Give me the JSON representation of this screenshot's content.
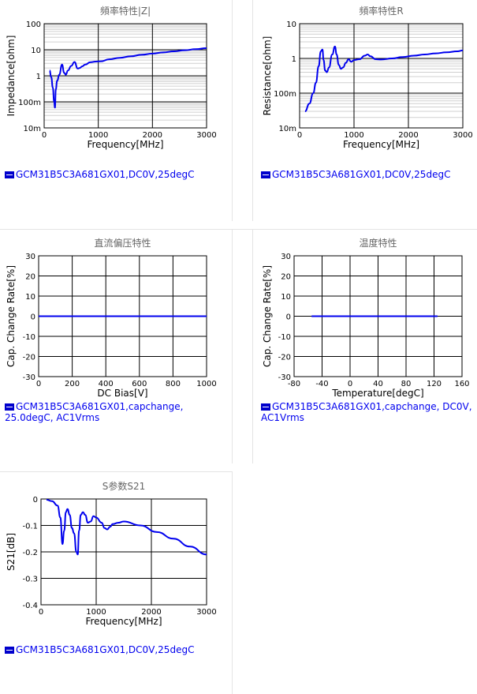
{
  "chart_data": [
    {
      "id": "z",
      "type": "line",
      "title": "頻率特性|Z|",
      "xlabel": "Frequency[MHz]",
      "ylabel": "Impedance[ohm]",
      "xlim": [
        0,
        3000
      ],
      "ylim": [
        0.01,
        100
      ],
      "yscale": "log",
      "grid": true,
      "x_ticks": [
        "0",
        "1000",
        "2000",
        "3000"
      ],
      "y_ticks": [
        "10m",
        "100m",
        "1",
        "10",
        "100"
      ],
      "legend": "GCM31B5C3A681GX01,DC0V,25degC",
      "series": [
        {
          "color": "#0000ee",
          "x": [
            100,
            130,
            160,
            185,
            200,
            215,
            240,
            280,
            330,
            370,
            400,
            440,
            500,
            560,
            620,
            660,
            700,
            760,
            850,
            950,
            1050,
            1200,
            1400,
            1600,
            1800,
            2000,
            2200,
            2400,
            2600,
            2800,
            3000
          ],
          "y": [
            1.6,
            0.9,
            0.35,
            0.1,
            0.06,
            0.3,
            0.65,
            1.1,
            2.7,
            1.3,
            1.1,
            1.6,
            2.4,
            3.4,
            1.9,
            2.0,
            2.3,
            2.7,
            3.3,
            3.5,
            3.6,
            4.3,
            4.9,
            5.6,
            6.4,
            7.1,
            7.9,
            8.7,
            9.6,
            10.5,
            11.5
          ]
        }
      ]
    },
    {
      "id": "r",
      "type": "line",
      "title": "頻率特性R",
      "xlabel": "Frequency[MHz]",
      "ylabel": "Resistance[ohm]",
      "xlim": [
        0,
        3000
      ],
      "ylim": [
        0.01,
        10
      ],
      "yscale": "log",
      "grid": true,
      "x_ticks": [
        "0",
        "1000",
        "2000",
        "3000"
      ],
      "y_ticks": [
        "10m",
        "100m",
        "1",
        "10"
      ],
      "legend": "GCM31B5C3A681GX01,DC0V,25degC",
      "series": [
        {
          "color": "#0000ee",
          "x": [
            100,
            180,
            250,
            300,
            350,
            390,
            420,
            440,
            470,
            500,
            540,
            600,
            650,
            680,
            720,
            760,
            800,
            850,
            900,
            950,
            1000,
            1100,
            1200,
            1250,
            1300,
            1400,
            1500,
            1700,
            1900,
            2100,
            2300,
            2500,
            2700,
            2900,
            3000
          ],
          "y": [
            0.03,
            0.05,
            0.1,
            0.2,
            0.6,
            1.6,
            1.8,
            0.9,
            0.45,
            0.4,
            0.55,
            1.3,
            2.2,
            1.3,
            0.65,
            0.5,
            0.55,
            0.75,
            0.95,
            0.8,
            0.9,
            0.95,
            1.2,
            1.3,
            1.15,
            0.95,
            0.93,
            1.0,
            1.1,
            1.2,
            1.3,
            1.4,
            1.5,
            1.6,
            1.7
          ]
        }
      ]
    },
    {
      "id": "dc",
      "type": "line",
      "title": "直流偏压特性",
      "xlabel": "DC Bias[V]",
      "ylabel": "Cap. Change Rate[%]",
      "xlim": [
        0,
        1000
      ],
      "ylim": [
        -30,
        30
      ],
      "grid": true,
      "x_ticks": [
        "0",
        "200",
        "400",
        "600",
        "800",
        "1000"
      ],
      "y_ticks": [
        "-30",
        "-20",
        "-10",
        "0",
        "10",
        "20",
        "30"
      ],
      "legend": "GCM31B5C3A681GX01,capchange, 25.0degC, AC1Vrms",
      "series": [
        {
          "color": "#0000ee",
          "x": [
            0,
            250,
            500,
            750,
            1000
          ],
          "y": [
            0,
            0,
            0,
            0,
            0
          ]
        }
      ]
    },
    {
      "id": "temp",
      "type": "line",
      "title": "温度特性",
      "xlabel": "Temperature[degC]",
      "ylabel": "Cap. Change Rate[%]",
      "xlim": [
        -80,
        160
      ],
      "ylim": [
        -30,
        30
      ],
      "grid": true,
      "x_ticks": [
        "-80",
        "-40",
        "0",
        "40",
        "80",
        "120",
        "160"
      ],
      "y_ticks": [
        "-30",
        "-20",
        "-10",
        "0",
        "10",
        "20",
        "30"
      ],
      "legend": "GCM31B5C3A681GX01,capchange, DC0V, AC1Vrms",
      "series": [
        {
          "color": "#0000ee",
          "x": [
            -55,
            0,
            60,
            125
          ],
          "y": [
            0,
            0,
            0,
            0
          ]
        }
      ]
    },
    {
      "id": "s21",
      "type": "line",
      "title": "S参数S21",
      "xlabel": "Frequency[MHz]",
      "ylabel": "S21[dB]",
      "xlim": [
        0,
        3000
      ],
      "ylim": [
        -0.4,
        0
      ],
      "grid": true,
      "x_ticks": [
        "0",
        "1000",
        "2000",
        "3000"
      ],
      "y_ticks": [
        "-0.4",
        "-0.3",
        "-0.2",
        "-0.1",
        "0"
      ],
      "legend": "GCM31B5C3A681GX01,DC0V,25degC",
      "series": [
        {
          "color": "#0000ee",
          "x": [
            100,
            200,
            300,
            350,
            390,
            420,
            450,
            480,
            520,
            560,
            600,
            640,
            665,
            690,
            720,
            760,
            800,
            850,
            900,
            950,
            1000,
            1100,
            1150,
            1200,
            1250,
            1300,
            1400,
            1500,
            1800,
            2100,
            2400,
            2700,
            3000
          ],
          "y": [
            -0.003,
            -0.008,
            -0.025,
            -0.07,
            -0.17,
            -0.12,
            -0.05,
            -0.038,
            -0.06,
            -0.11,
            -0.13,
            -0.2,
            -0.21,
            -0.12,
            -0.06,
            -0.05,
            -0.06,
            -0.09,
            -0.085,
            -0.065,
            -0.07,
            -0.09,
            -0.11,
            -0.115,
            -0.105,
            -0.095,
            -0.09,
            -0.085,
            -0.1,
            -0.125,
            -0.15,
            -0.18,
            -0.21
          ]
        }
      ]
    }
  ]
}
